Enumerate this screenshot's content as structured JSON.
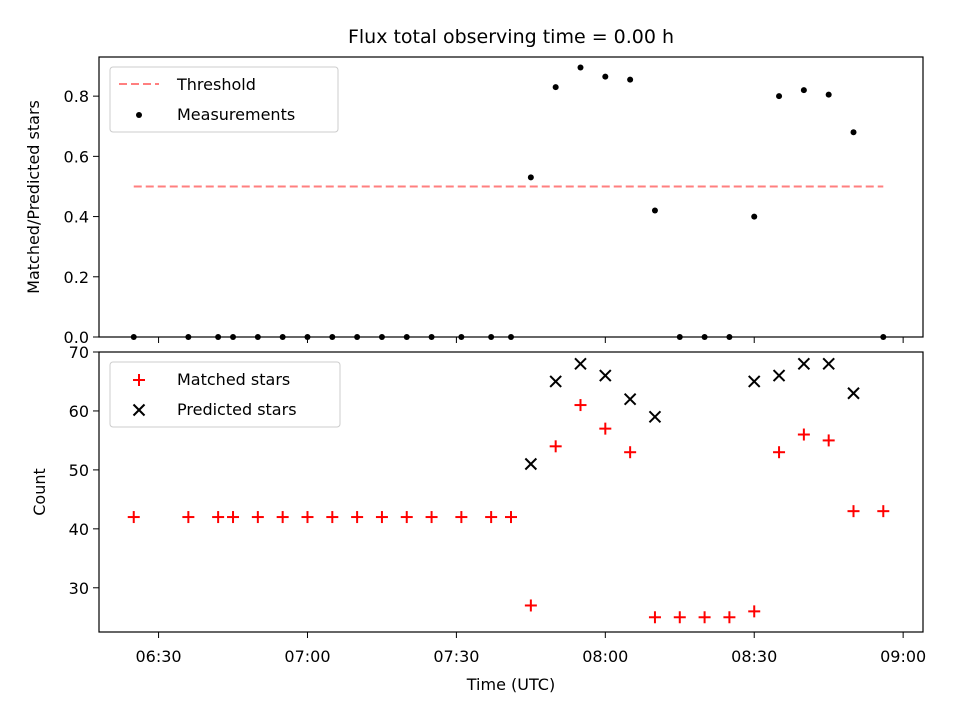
{
  "chart_data": [
    {
      "panel": "top",
      "type": "scatter",
      "title": "Flux total observing time = 0.00 h",
      "xlabel": "",
      "ylabel": "Matched/Predicted stars",
      "ylim": [
        0.0,
        0.93
      ],
      "yticks": [
        0.0,
        0.2,
        0.4,
        0.6,
        0.8
      ],
      "ytick_labels": [
        "0.0",
        "0.2",
        "0.4",
        "0.6",
        "0.8"
      ],
      "legend_position": "upper-left",
      "grid": false,
      "series": [
        {
          "name": "Threshold",
          "kind": "line",
          "style": "dashed",
          "color": "#ff7f7f",
          "x": [
            "06:25",
            "08:56"
          ],
          "y": [
            0.5,
            0.5
          ]
        },
        {
          "name": "Measurements",
          "kind": "points",
          "marker": "dot",
          "color": "#000000",
          "x": [
            "06:25",
            "06:36",
            "06:42",
            "06:45",
            "06:50",
            "06:55",
            "07:00",
            "07:05",
            "07:10",
            "07:15",
            "07:20",
            "07:25",
            "07:31",
            "07:37",
            "07:41",
            "07:45",
            "07:50",
            "07:55",
            "08:00",
            "08:05",
            "08:10",
            "08:15",
            "08:20",
            "08:25",
            "08:30",
            "08:35",
            "08:40",
            "08:45",
            "08:50",
            "08:56"
          ],
          "y": [
            0,
            0,
            0,
            0,
            0,
            0,
            0,
            0,
            0,
            0,
            0,
            0,
            0,
            0,
            0,
            0.53,
            0.83,
            0.895,
            0.865,
            0.855,
            0.42,
            0,
            0,
            0,
            0.4,
            0.8,
            0.82,
            0.805,
            0.68,
            0
          ]
        }
      ]
    },
    {
      "panel": "bottom",
      "type": "scatter",
      "title": "",
      "xlabel": "Time (UTC)",
      "ylabel": "Count",
      "xlim": [
        "06:18",
        "09:04"
      ],
      "ylim": [
        22.5,
        70
      ],
      "xticks": [
        "06:30",
        "07:00",
        "07:30",
        "08:00",
        "08:30",
        "09:00"
      ],
      "yticks": [
        30,
        40,
        50,
        60,
        70
      ],
      "ytick_labels": [
        "30",
        "40",
        "50",
        "60",
        "70"
      ],
      "legend_position": "upper-left",
      "grid": false,
      "series": [
        {
          "name": "Matched stars",
          "kind": "points",
          "marker": "plus",
          "color": "#ff0000",
          "x": [
            "06:25",
            "06:36",
            "06:42",
            "06:45",
            "06:50",
            "06:55",
            "07:00",
            "07:05",
            "07:10",
            "07:15",
            "07:20",
            "07:25",
            "07:31",
            "07:37",
            "07:41",
            "07:45",
            "07:50",
            "07:55",
            "08:00",
            "08:05",
            "08:10",
            "08:15",
            "08:20",
            "08:25",
            "08:30",
            "08:35",
            "08:40",
            "08:45",
            "08:50",
            "08:56"
          ],
          "y": [
            42,
            42,
            42,
            42,
            42,
            42,
            42,
            42,
            42,
            42,
            42,
            42,
            42,
            42,
            42,
            27,
            54,
            61,
            57,
            53,
            25,
            25,
            25,
            25,
            26,
            53,
            56,
            55,
            43,
            43
          ]
        },
        {
          "name": "Predicted stars",
          "kind": "points",
          "marker": "x",
          "color": "#000000",
          "x": [
            "07:45",
            "07:50",
            "07:55",
            "08:00",
            "08:05",
            "08:10",
            "08:30",
            "08:35",
            "08:40",
            "08:45",
            "08:50"
          ],
          "y": [
            51,
            65,
            68,
            66,
            62,
            59,
            65,
            66,
            68,
            68,
            63
          ]
        }
      ]
    }
  ]
}
